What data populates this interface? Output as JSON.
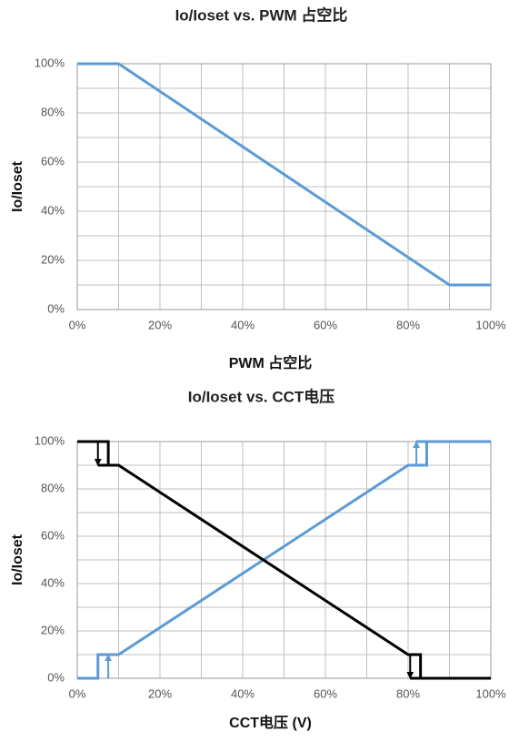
{
  "chart_data": [
    {
      "type": "line",
      "title": "Io/Ioset vs. PWM 占空比",
      "x_label": "PWM 占空比",
      "y_label": "Io/Ioset",
      "xlim": [
        0,
        100
      ],
      "ylim": [
        0,
        100
      ],
      "xticks": [
        {
          "value": 0,
          "label": "0%"
        },
        {
          "value": 20,
          "label": "20%"
        },
        {
          "value": 40,
          "label": "40%"
        },
        {
          "value": 60,
          "label": "60%"
        },
        {
          "value": 80,
          "label": "80%"
        },
        {
          "value": 100,
          "label": "100%"
        }
      ],
      "yticks": [
        {
          "value": 0,
          "label": "0%"
        },
        {
          "value": 20,
          "label": "20%"
        },
        {
          "value": 40,
          "label": "40%"
        },
        {
          "value": 60,
          "label": "60%"
        },
        {
          "value": 80,
          "label": "80%"
        },
        {
          "value": 100,
          "label": "100%"
        }
      ],
      "xgrid": [
        0,
        10,
        20,
        30,
        40,
        50,
        60,
        70,
        80,
        90,
        100
      ],
      "ygrid": [
        0,
        10,
        20,
        30,
        40,
        50,
        60,
        70,
        80,
        90,
        100
      ],
      "series": [
        {
          "color": "#5b9bd5",
          "x": [
            0,
            10,
            90,
            100
          ],
          "values": [
            100,
            100,
            10,
            10
          ]
        }
      ]
    },
    {
      "type": "line",
      "title": "Io/Ioset vs. CCT电压",
      "x_label": "CCT电压 (V)",
      "y_label": "Io/Ioset",
      "xlim": [
        0,
        100
      ],
      "ylim": [
        0,
        100
      ],
      "xticks": [
        {
          "value": 0,
          "label": "0%"
        },
        {
          "value": 20,
          "label": "20%"
        },
        {
          "value": 40,
          "label": "40%"
        },
        {
          "value": 60,
          "label": "60%"
        },
        {
          "value": 80,
          "label": "80%"
        },
        {
          "value": 100,
          "label": "100%"
        }
      ],
      "yticks": [
        {
          "value": 0,
          "label": "0%"
        },
        {
          "value": 20,
          "label": "20%"
        },
        {
          "value": 40,
          "label": "40%"
        },
        {
          "value": 60,
          "label": "60%"
        },
        {
          "value": 80,
          "label": "80%"
        },
        {
          "value": 100,
          "label": "100%"
        }
      ],
      "xgrid": [
        0,
        10,
        20,
        30,
        40,
        50,
        60,
        70,
        80,
        90,
        100
      ],
      "ygrid": [
        0,
        10,
        20,
        30,
        40,
        50,
        60,
        70,
        80,
        90,
        100
      ],
      "series": [
        {
          "color": "#5b9bd5",
          "x": [
            0,
            5,
            5,
            10,
            80,
            84.5,
            84.5,
            82,
            100
          ],
          "values": [
            0,
            0,
            10,
            10,
            90,
            90,
            100,
            100,
            100
          ]
        },
        {
          "color": "#5b9bd5",
          "arrow": true,
          "x": [
            7.5,
            7.5
          ],
          "values": [
            0,
            10
          ]
        },
        {
          "color": "#5b9bd5",
          "arrow": true,
          "x": [
            82,
            82
          ],
          "values": [
            90,
            100
          ]
        },
        {
          "color": "#000000",
          "x": [
            0,
            7.5,
            7.5,
            5,
            10,
            80,
            83,
            83,
            80.5,
            100
          ],
          "values": [
            100,
            100,
            90,
            90,
            90,
            10,
            10,
            0,
            0,
            0
          ]
        },
        {
          "color": "#000000",
          "arrow": true,
          "x": [
            5,
            5
          ],
          "values": [
            100,
            90
          ]
        },
        {
          "color": "#000000",
          "arrow": true,
          "x": [
            80.5,
            80.5
          ],
          "values": [
            10,
            0
          ]
        }
      ]
    }
  ]
}
